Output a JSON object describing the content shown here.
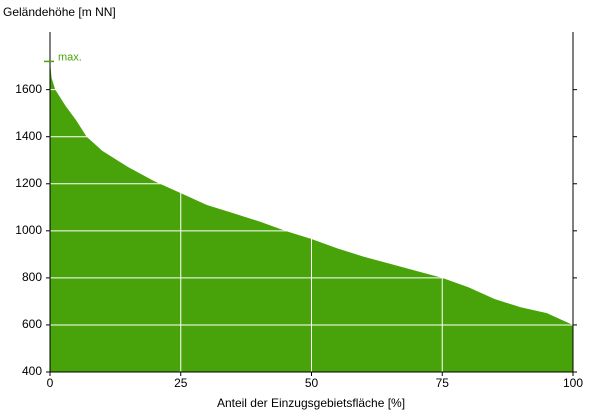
{
  "chart_data": {
    "type": "area",
    "y_label": "Geländehöhe [m NN]",
    "x_label": "Anteil der Einzugsgebietsfläche [%]",
    "x": [
      0,
      0.3,
      1,
      3,
      5,
      7,
      8,
      10,
      15,
      20,
      25,
      30,
      35,
      40,
      45,
      50,
      55,
      60,
      65,
      70,
      75,
      80,
      85,
      90,
      95,
      100
    ],
    "values": [
      1720,
      1650,
      1600,
      1530,
      1470,
      1400,
      1380,
      1340,
      1270,
      1210,
      1160,
      1110,
      1075,
      1040,
      1000,
      965,
      925,
      890,
      860,
      830,
      800,
      760,
      710,
      675,
      650,
      600
    ],
    "color": "#48a30a",
    "xlim": [
      0,
      100
    ],
    "xticks": [
      0,
      25,
      50,
      75,
      100
    ],
    "ylim": [
      400,
      1845
    ],
    "yticks": [
      400,
      600,
      800,
      1000,
      1200,
      1400,
      1600
    ],
    "grid": true,
    "annotation": {
      "text": "max.",
      "value": 1720
    }
  }
}
